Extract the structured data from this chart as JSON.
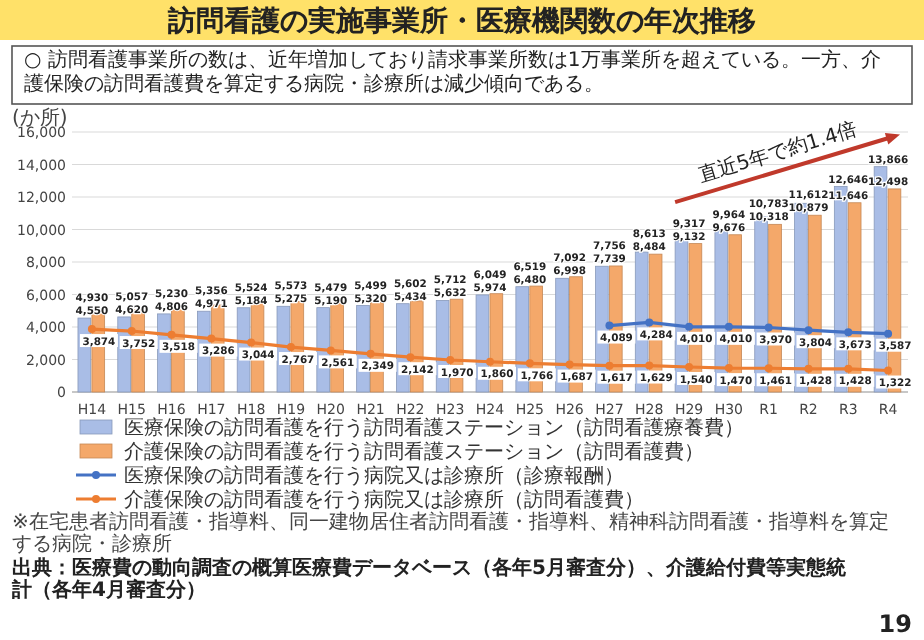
{
  "chart_data": {
    "type": "bar",
    "title": "訪問看護の実施事業所・医療機関数の年次推移",
    "subtitle": "○ 訪問看護事業所の数は、近年増加しており請求事業所数は1万事業所を超えている。一方、介護保険の訪問看護費を算定する病院・診療所は減少傾向である。",
    "ylabel": "(か所)",
    "categories": [
      "H14",
      "H15",
      "H16",
      "H17",
      "H18",
      "H19",
      "H20",
      "H21",
      "H22",
      "H23",
      "H24",
      "H25",
      "H26",
      "H27",
      "H28",
      "H29",
      "H30",
      "R1",
      "R2",
      "R3",
      "R4"
    ],
    "series": [
      {
        "name": "医療保険の訪問看護を行う訪問看護ステーション（訪問看護療養費）",
        "color": "#a9bde6",
        "values": [
          4550,
          4620,
          4806,
          4971,
          5184,
          5275,
          5190,
          5320,
          5434,
          5632,
          5974,
          6480,
          6998,
          7739,
          8613,
          9317,
          9964,
          10783,
          11612,
          12646,
          13866
        ],
        "value_labels": [
          "4,550",
          "4,620",
          "4,806",
          "4,971",
          "5,184",
          "5,275",
          "5,190",
          "5,320",
          "5,434",
          "5,632",
          "5,974",
          "6,480",
          "6,998",
          "7,739",
          "8,613",
          "9,317",
          "9,964",
          "10,783",
          "11,612",
          "12,646",
          "13,866"
        ]
      },
      {
        "name": "介護保険の訪問看護を行う訪問看護ステーション（訪問看護費）",
        "color": "#f4a86a",
        "values": [
          4930,
          5057,
          5230,
          5356,
          5524,
          5573,
          5479,
          5499,
          5602,
          5712,
          6049,
          6519,
          7092,
          7756,
          8484,
          9132,
          9676,
          10318,
          10879,
          11646,
          12498
        ],
        "value_labels": [
          "4,930",
          "5,057",
          "5,230",
          "5,356",
          "5,524",
          "5,573",
          "5,479",
          "5,499",
          "5,602",
          "5,712",
          "6,049",
          "6,519",
          "7,092",
          "7,756",
          "8,484",
          "9,132",
          "9,676",
          "10,318",
          "10,879",
          "11,646",
          "12,498"
        ]
      },
      {
        "name": "医療保険の訪問看護を行う病院又は診療所（診療報酬）",
        "type": "line",
        "color": "#4472c4",
        "values": [
          null,
          null,
          null,
          null,
          null,
          null,
          null,
          null,
          null,
          null,
          null,
          null,
          null,
          4089,
          4284,
          4010,
          4010,
          3970,
          3804,
          3673,
          3587
        ],
        "value_labels": [
          null,
          null,
          null,
          null,
          null,
          null,
          null,
          null,
          null,
          null,
          null,
          null,
          null,
          "4,089",
          "4,284",
          "4,010",
          "4,010",
          "3,970",
          "3,804",
          "3,673",
          "3,587"
        ]
      },
      {
        "name": "介護保険の訪問看護を行う病院又は診療所（訪問看護費）",
        "type": "line",
        "color": "#ed7d31",
        "values": [
          3874,
          3752,
          3518,
          3286,
          3044,
          2767,
          2561,
          2349,
          2142,
          1970,
          1860,
          1766,
          1687,
          1617,
          1629,
          1540,
          1470,
          1461,
          1428,
          1428,
          1322
        ],
        "value_labels": [
          "3,874",
          "3,752",
          "3,518",
          "3,286",
          "3,044",
          "2,767",
          "2,561",
          "2,349",
          "2,142",
          "1,970",
          "1,860",
          "1,766",
          "1,687",
          "1,617",
          "1,629",
          "1,540",
          "1,470",
          "1,461",
          "1,428",
          "1,428",
          "1,322"
        ]
      }
    ],
    "ylim": [
      0,
      16000
    ],
    "yticks": [
      {
        "value": 0,
        "label": "0"
      },
      {
        "value": 2000,
        "label": "2,000"
      },
      {
        "value": 4000,
        "label": "4,000"
      },
      {
        "value": 6000,
        "label": "6,000"
      },
      {
        "value": 8000,
        "label": "8,000"
      },
      {
        "value": 10000,
        "label": "10,000"
      },
      {
        "value": 12000,
        "label": "12,000"
      },
      {
        "value": 14000,
        "label": "14,000"
      },
      {
        "value": 16000,
        "label": "16,000"
      }
    ],
    "grid": "y",
    "legend": "bottom",
    "marker": "circle",
    "annotations": [
      "直近5年で約1.4倍",
      "※在宅患者訪問看護・指導料、同一建物居住者訪問看護・指導料、精神科訪問看護・指導料を算定する病院・診療所",
      "出典：医療費の動向調査の概算医療費データベース（各年5月審査分）、介護給付費等実態統計（各年4月審査分）",
      "19"
    ]
  }
}
